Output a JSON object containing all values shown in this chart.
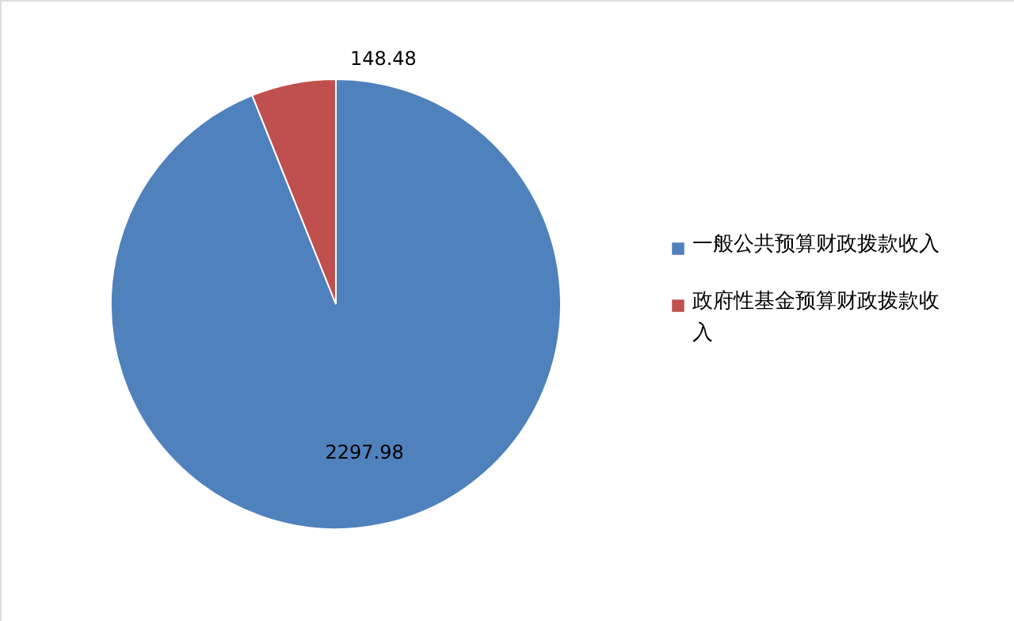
{
  "chart_data": {
    "type": "pie",
    "categories": [
      "一般公共预算财政拨款收入",
      "政府性基金预算财政拨款收入"
    ],
    "values": [
      2297.98,
      148.48
    ],
    "colors": [
      "#4f81bd",
      "#c0504d"
    ],
    "data_labels": true,
    "legend": "right"
  }
}
